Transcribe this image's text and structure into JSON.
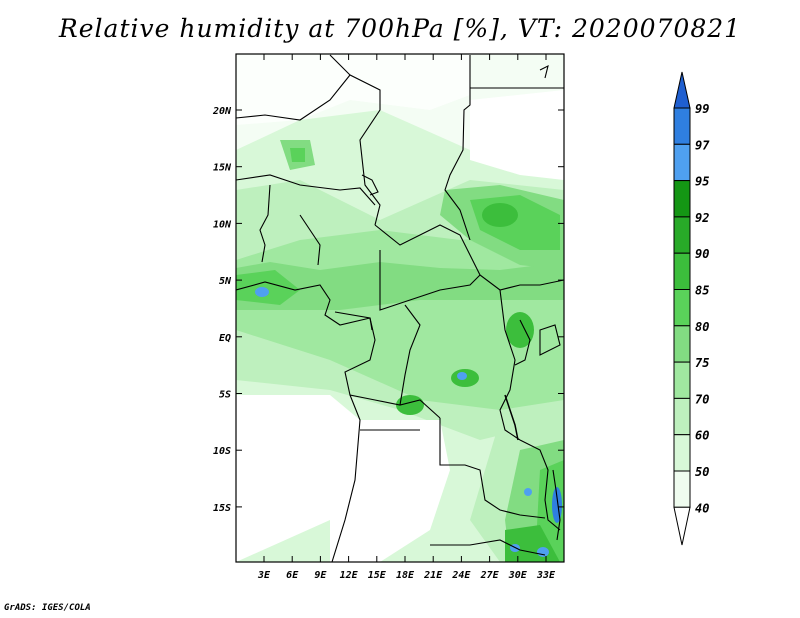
{
  "title": "Relative humidity at 700hPa [%], VT: 2020070821",
  "credit": "GrADS: IGES/COLA",
  "map": {
    "lat_labels": [
      "20N",
      "15N",
      "10N",
      "5N",
      "EQ",
      "5S",
      "10S",
      "15S"
    ],
    "lon_labels": [
      "3E",
      "6E",
      "9E",
      "12E",
      "15E",
      "18E",
      "21E",
      "24E",
      "27E",
      "30E",
      "33E"
    ]
  },
  "colorbar": {
    "levels": [
      "99",
      "97",
      "95",
      "92",
      "90",
      "85",
      "80",
      "75",
      "70",
      "60",
      "50",
      "40"
    ],
    "colors": [
      "#1f5fd0",
      "#2f7fe0",
      "#4fa0f0",
      "#149614",
      "#28aa28",
      "#3cbe3c",
      "#5ad25a",
      "#82dc82",
      "#a0e8a0",
      "#bef0be",
      "#d8f8d8",
      "#effcef",
      "#ffffff"
    ]
  }
}
